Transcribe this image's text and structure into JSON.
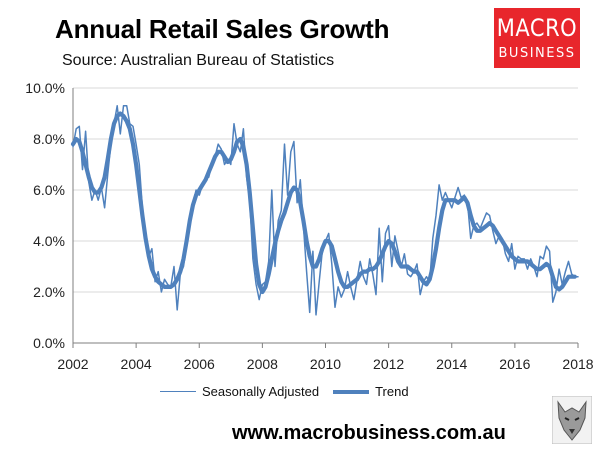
{
  "header": {
    "title": "Annual Retail Sales Growth",
    "subtitle": "Source: Australian Bureau of Statistics"
  },
  "logo": {
    "line1": "MACRO",
    "line2": "BUSINESS",
    "color": "#e8262c"
  },
  "footer": {
    "url": "www.macrobusiness.com.au",
    "icon": "wolf-emblem-icon"
  },
  "chart_data": {
    "type": "line",
    "title": "Annual Retail Sales Growth",
    "xlabel": "",
    "ylabel": "",
    "xlim": [
      2002,
      2018
    ],
    "ylim": [
      0,
      10
    ],
    "x_ticks": [
      "2002",
      "2004",
      "2006",
      "2008",
      "2010",
      "2012",
      "2014",
      "2016",
      "2018"
    ],
    "y_ticks": [
      "0.0%",
      "2.0%",
      "4.0%",
      "6.0%",
      "8.0%",
      "10.0%"
    ],
    "grid": "horizontal",
    "legend_position": "bottom",
    "color": "#4f81bd",
    "series": [
      {
        "name": "Seasonally Adjusted",
        "style": "thin",
        "x": [
          2002.0,
          2002.1,
          2002.2,
          2002.3,
          2002.4,
          2002.5,
          2002.6,
          2002.7,
          2002.8,
          2002.9,
          2003.0,
          2003.1,
          2003.2,
          2003.3,
          2003.4,
          2003.5,
          2003.6,
          2003.7,
          2003.8,
          2003.9,
          2004.0,
          2004.1,
          2004.2,
          2004.3,
          2004.4,
          2004.5,
          2004.6,
          2004.7,
          2004.8,
          2004.9,
          2005.0,
          2005.1,
          2005.2,
          2005.3,
          2005.4,
          2005.5,
          2005.6,
          2005.7,
          2005.8,
          2005.9,
          2006.0,
          2006.1,
          2006.2,
          2006.3,
          2006.4,
          2006.5,
          2006.6,
          2006.7,
          2006.8,
          2006.9,
          2007.0,
          2007.1,
          2007.2,
          2007.3,
          2007.4,
          2007.5,
          2007.6,
          2007.7,
          2007.8,
          2007.9,
          2008.0,
          2008.1,
          2008.2,
          2008.3,
          2008.4,
          2008.5,
          2008.6,
          2008.7,
          2008.8,
          2008.9,
          2009.0,
          2009.1,
          2009.2,
          2009.3,
          2009.4,
          2009.5,
          2009.6,
          2009.7,
          2009.8,
          2009.9,
          2010.0,
          2010.1,
          2010.2,
          2010.3,
          2010.4,
          2010.5,
          2010.6,
          2010.7,
          2010.8,
          2010.9,
          2011.0,
          2011.1,
          2011.2,
          2011.3,
          2011.4,
          2011.5,
          2011.6,
          2011.7,
          2011.8,
          2011.9,
          2012.0,
          2012.1,
          2012.2,
          2012.3,
          2012.4,
          2012.5,
          2012.6,
          2012.7,
          2012.8,
          2012.9,
          2013.0,
          2013.1,
          2013.2,
          2013.3,
          2013.4,
          2013.5,
          2013.6,
          2013.7,
          2013.8,
          2013.9,
          2014.0,
          2014.1,
          2014.2,
          2014.3,
          2014.4,
          2014.5,
          2014.6,
          2014.7,
          2014.8,
          2014.9,
          2015.0,
          2015.1,
          2015.2,
          2015.3,
          2015.4,
          2015.5,
          2015.6,
          2015.7,
          2015.8,
          2015.9,
          2016.0,
          2016.1,
          2016.2,
          2016.3,
          2016.4,
          2016.5,
          2016.6,
          2016.7,
          2016.8,
          2016.9,
          2017.0,
          2017.1,
          2017.2,
          2017.3,
          2017.4,
          2017.5,
          2017.6,
          2017.7,
          2017.8,
          2017.9,
          2018.0
        ],
        "y": [
          7.7,
          8.4,
          8.5,
          6.8,
          8.3,
          6.3,
          5.6,
          6.0,
          5.6,
          6.1,
          5.3,
          6.6,
          7.8,
          8.6,
          9.3,
          8.2,
          9.3,
          9.3,
          8.6,
          8.5,
          7.8,
          7.0,
          5.3,
          4.0,
          3.4,
          3.7,
          2.4,
          2.8,
          2.0,
          2.5,
          2.3,
          2.2,
          3.0,
          1.3,
          2.7,
          3.0,
          3.8,
          4.8,
          5.5,
          6.0,
          5.8,
          6.2,
          6.5,
          6.5,
          7.0,
          7.3,
          7.8,
          7.6,
          7.0,
          7.2,
          7.0,
          8.6,
          7.8,
          7.5,
          8.4,
          6.5,
          5.6,
          3.3,
          2.3,
          1.7,
          2.3,
          2.4,
          3.2,
          6.0,
          3.0,
          4.8,
          5.2,
          7.8,
          5.8,
          7.5,
          7.9,
          5.5,
          6.4,
          4.6,
          2.8,
          1.2,
          3.6,
          1.1,
          2.4,
          3.6,
          4.0,
          4.3,
          3.1,
          1.4,
          2.2,
          1.8,
          2.1,
          2.8,
          2.2,
          1.7,
          2.5,
          3.2,
          2.6,
          2.3,
          3.3,
          2.7,
          1.9,
          4.5,
          2.4,
          4.3,
          4.6,
          3.0,
          4.2,
          3.6,
          3.0,
          3.5,
          2.7,
          2.6,
          2.8,
          3.1,
          1.9,
          2.4,
          2.6,
          2.4,
          4.1,
          5.0,
          6.2,
          5.6,
          5.9,
          5.6,
          5.3,
          5.7,
          6.1,
          5.7,
          5.8,
          5.5,
          4.1,
          4.6,
          4.7,
          4.5,
          4.8,
          5.1,
          5.0,
          4.4,
          3.9,
          4.2,
          4.1,
          3.5,
          3.2,
          3.9,
          2.9,
          3.4,
          3.3,
          3.3,
          2.9,
          3.3,
          3.0,
          2.6,
          3.4,
          3.3,
          3.8,
          3.6,
          1.6,
          2.0,
          2.9,
          2.3,
          2.8,
          3.2,
          2.7,
          2.6,
          2.6
        ]
      },
      {
        "name": "Trend",
        "style": "thick",
        "x": [
          2002.0,
          2002.1,
          2002.2,
          2002.3,
          2002.4,
          2002.5,
          2002.6,
          2002.7,
          2002.8,
          2002.9,
          2003.0,
          2003.1,
          2003.2,
          2003.3,
          2003.4,
          2003.5,
          2003.6,
          2003.7,
          2003.8,
          2003.9,
          2004.0,
          2004.1,
          2004.2,
          2004.3,
          2004.4,
          2004.5,
          2004.6,
          2004.7,
          2004.8,
          2004.9,
          2005.0,
          2005.1,
          2005.2,
          2005.3,
          2005.4,
          2005.5,
          2005.6,
          2005.7,
          2005.8,
          2005.9,
          2006.0,
          2006.1,
          2006.2,
          2006.3,
          2006.4,
          2006.5,
          2006.6,
          2006.7,
          2006.8,
          2006.9,
          2007.0,
          2007.1,
          2007.2,
          2007.3,
          2007.4,
          2007.5,
          2007.6,
          2007.7,
          2007.8,
          2007.9,
          2008.0,
          2008.1,
          2008.2,
          2008.3,
          2008.4,
          2008.5,
          2008.6,
          2008.7,
          2008.8,
          2008.9,
          2009.0,
          2009.1,
          2009.2,
          2009.3,
          2009.4,
          2009.5,
          2009.6,
          2009.7,
          2009.8,
          2009.9,
          2010.0,
          2010.1,
          2010.2,
          2010.3,
          2010.4,
          2010.5,
          2010.6,
          2010.7,
          2010.8,
          2010.9,
          2011.0,
          2011.1,
          2011.2,
          2011.3,
          2011.4,
          2011.5,
          2011.6,
          2011.7,
          2011.8,
          2011.9,
          2012.0,
          2012.1,
          2012.2,
          2012.3,
          2012.4,
          2012.5,
          2012.6,
          2012.7,
          2012.8,
          2012.9,
          2013.0,
          2013.1,
          2013.2,
          2013.3,
          2013.4,
          2013.5,
          2013.6,
          2013.7,
          2013.8,
          2013.9,
          2014.0,
          2014.1,
          2014.2,
          2014.3,
          2014.4,
          2014.5,
          2014.6,
          2014.7,
          2014.8,
          2014.9,
          2015.0,
          2015.1,
          2015.2,
          2015.3,
          2015.4,
          2015.5,
          2015.6,
          2015.7,
          2015.8,
          2015.9,
          2016.0,
          2016.1,
          2016.2,
          2016.3,
          2016.4,
          2016.5,
          2016.6,
          2016.7,
          2016.8,
          2016.9,
          2017.0,
          2017.1,
          2017.2,
          2017.3,
          2017.4,
          2017.5,
          2017.6,
          2017.7,
          2017.8,
          2017.9
        ],
        "y": [
          7.8,
          8.0,
          7.9,
          7.5,
          7.0,
          6.5,
          6.1,
          5.9,
          5.9,
          6.1,
          6.5,
          7.2,
          8.0,
          8.6,
          8.9,
          9.0,
          8.9,
          8.7,
          8.4,
          7.8,
          7.0,
          6.0,
          5.0,
          4.1,
          3.4,
          2.9,
          2.6,
          2.4,
          2.3,
          2.2,
          2.2,
          2.2,
          2.3,
          2.5,
          2.8,
          3.3,
          4.0,
          4.8,
          5.4,
          5.8,
          6.0,
          6.2,
          6.4,
          6.7,
          7.0,
          7.3,
          7.5,
          7.5,
          7.3,
          7.1,
          7.2,
          7.5,
          7.9,
          8.0,
          7.7,
          7.0,
          5.9,
          4.5,
          3.1,
          2.3,
          2.0,
          2.2,
          2.7,
          3.3,
          3.9,
          4.4,
          4.8,
          5.1,
          5.5,
          5.9,
          6.1,
          6.0,
          5.5,
          4.8,
          4.0,
          3.4,
          3.0,
          3.0,
          3.3,
          3.7,
          4.0,
          4.0,
          3.8,
          3.3,
          2.8,
          2.4,
          2.2,
          2.2,
          2.3,
          2.4,
          2.5,
          2.7,
          2.8,
          2.8,
          2.9,
          2.9,
          3.0,
          3.2,
          3.5,
          3.8,
          4.0,
          3.9,
          3.6,
          3.2,
          3.0,
          3.0,
          3.0,
          2.9,
          2.8,
          2.8,
          2.6,
          2.4,
          2.3,
          2.5,
          3.0,
          3.7,
          4.5,
          5.2,
          5.6,
          5.6,
          5.6,
          5.6,
          5.5,
          5.6,
          5.7,
          5.5,
          5.0,
          4.6,
          4.4,
          4.4,
          4.5,
          4.6,
          4.7,
          4.6,
          4.4,
          4.2,
          4.0,
          3.8,
          3.6,
          3.4,
          3.3,
          3.2,
          3.2,
          3.2,
          3.2,
          3.1,
          3.0,
          2.9,
          2.9,
          3.0,
          3.1,
          3.0,
          2.6,
          2.2,
          2.1,
          2.2,
          2.4,
          2.6,
          2.6,
          2.6
        ]
      }
    ]
  }
}
